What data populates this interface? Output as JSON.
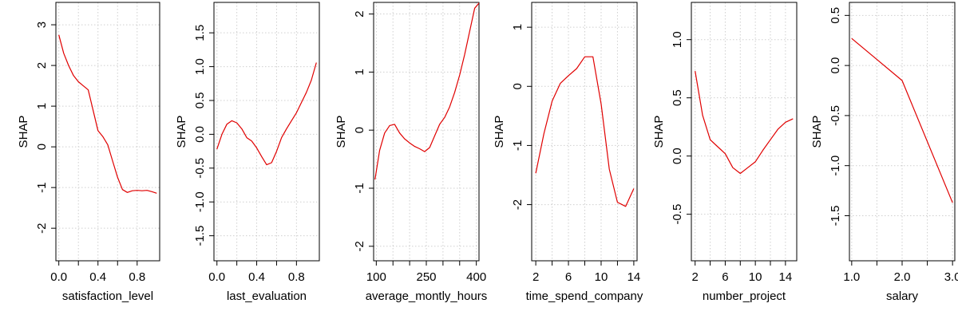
{
  "chart_data": [
    {
      "type": "line",
      "xlabel": "satisfaction_level",
      "ylabel": "SHAP",
      "xlim": [
        -0.03,
        1.03
      ],
      "ylim": [
        -2.8,
        3.55
      ],
      "xticks": [
        0.0,
        0.4,
        0.8
      ],
      "xtick_labels": [
        "0.0",
        "0.4",
        "0.8"
      ],
      "xtick_minor": [
        0.2,
        0.6
      ],
      "yticks": [
        -2,
        -1,
        0,
        1,
        2,
        3
      ],
      "ytick_labels": [
        "-2",
        "-1",
        "0",
        "1",
        "2",
        "3"
      ],
      "grid": true,
      "series": [
        {
          "color": "#e00000",
          "x": [
            0.0,
            0.05,
            0.1,
            0.15,
            0.2,
            0.25,
            0.3,
            0.35,
            0.4,
            0.45,
            0.5,
            0.55,
            0.6,
            0.65,
            0.7,
            0.75,
            0.8,
            0.85,
            0.9,
            0.95,
            1.0
          ],
          "y": [
            2.75,
            2.3,
            2.0,
            1.75,
            1.6,
            1.5,
            1.4,
            0.9,
            0.4,
            0.25,
            0.05,
            -0.35,
            -0.75,
            -1.05,
            -1.12,
            -1.08,
            -1.07,
            -1.08,
            -1.07,
            -1.1,
            -1.14
          ]
        }
      ]
    },
    {
      "type": "line",
      "xlabel": "last_evaluation",
      "ylabel": "SHAP",
      "xlim": [
        -0.03,
        1.03
      ],
      "ylim": [
        -1.87,
        1.95
      ],
      "xticks": [
        0.0,
        0.4,
        0.8
      ],
      "xtick_labels": [
        "0.0",
        "0.4",
        "0.8"
      ],
      "xtick_minor": [
        0.2,
        0.6
      ],
      "yticks": [
        -1.5,
        -1.0,
        -0.5,
        0.0,
        0.5,
        1.0,
        1.5
      ],
      "ytick_labels": [
        "-1.5",
        "-1.0",
        "-0.5",
        "0.0",
        "0.5",
        "1.0",
        "1.5"
      ],
      "grid": true,
      "series": [
        {
          "color": "#e00000",
          "x": [
            0.0,
            0.05,
            0.1,
            0.15,
            0.2,
            0.25,
            0.3,
            0.35,
            0.4,
            0.45,
            0.5,
            0.55,
            0.6,
            0.65,
            0.7,
            0.75,
            0.8,
            0.85,
            0.9,
            0.95,
            1.0
          ],
          "y": [
            -0.22,
            0.0,
            0.15,
            0.2,
            0.17,
            0.08,
            -0.05,
            -0.1,
            -0.2,
            -0.33,
            -0.45,
            -0.42,
            -0.25,
            -0.05,
            0.08,
            0.2,
            0.32,
            0.47,
            0.62,
            0.8,
            1.06
          ]
        }
      ]
    },
    {
      "type": "line",
      "xlabel": "average_montly_hours",
      "ylabel": "SHAP",
      "xlim": [
        92,
        408
      ],
      "ylim": [
        -2.25,
        2.2
      ],
      "xticks": [
        100,
        250,
        400
      ],
      "xtick_labels": [
        "100",
        "250",
        "400"
      ],
      "xtick_minor": [
        150,
        200,
        300,
        350
      ],
      "yticks": [
        -2,
        -1,
        0,
        1,
        2
      ],
      "ytick_labels": [
        "-2",
        "-1",
        "0",
        "1",
        "2"
      ],
      "grid": true,
      "series": [
        {
          "color": "#e00000",
          "x": [
            96,
            110,
            125,
            140,
            155,
            170,
            185,
            200,
            215,
            230,
            245,
            260,
            275,
            290,
            305,
            320,
            335,
            350,
            365,
            380,
            395,
            410
          ],
          "y": [
            -0.85,
            -0.35,
            -0.05,
            0.08,
            0.1,
            -0.05,
            -0.15,
            -0.22,
            -0.28,
            -0.32,
            -0.37,
            -0.3,
            -0.1,
            0.1,
            0.22,
            0.4,
            0.65,
            0.95,
            1.3,
            1.7,
            2.1,
            2.2
          ]
        }
      ]
    },
    {
      "type": "line",
      "xlabel": "time_spend_company",
      "ylabel": "SHAP",
      "xlim": [
        1.5,
        14.4
      ],
      "ylim": [
        -2.95,
        1.42
      ],
      "xticks": [
        2,
        6,
        10,
        14
      ],
      "xtick_labels": [
        "2",
        "6",
        "10",
        "14"
      ],
      "xtick_minor": [
        4,
        8,
        12
      ],
      "yticks": [
        -2,
        -1,
        0,
        1
      ],
      "ytick_labels": [
        "-2",
        "-1",
        "0",
        "1"
      ],
      "grid": true,
      "series": [
        {
          "color": "#e00000",
          "x": [
            2,
            3,
            4,
            5,
            6,
            7,
            8,
            9,
            10,
            11,
            12,
            13,
            14
          ],
          "y": [
            -1.47,
            -0.8,
            -0.25,
            0.05,
            0.18,
            0.3,
            0.5,
            0.5,
            -0.3,
            -1.4,
            -1.96,
            -2.03,
            -1.73
          ]
        }
      ]
    },
    {
      "type": "line",
      "xlabel": "number_project",
      "ylabel": "SHAP",
      "xlim": [
        1.5,
        15.5
      ],
      "ylim": [
        -0.9,
        1.32
      ],
      "xticks": [
        2,
        6,
        10,
        14
      ],
      "xtick_labels": [
        "2",
        "6",
        "10",
        "14"
      ],
      "xtick_minor": [
        4,
        8,
        12
      ],
      "yticks": [
        -0.5,
        0.0,
        0.5,
        1.0
      ],
      "ytick_labels": [
        "-0.5",
        "0.0",
        "0.5",
        "1.0"
      ],
      "grid": true,
      "series": [
        {
          "color": "#e00000",
          "x": [
            2,
            3,
            4,
            5,
            6,
            7,
            8,
            9,
            10,
            11,
            12,
            13,
            14,
            15
          ],
          "y": [
            0.73,
            0.35,
            0.14,
            0.08,
            0.02,
            -0.1,
            -0.15,
            -0.1,
            -0.05,
            0.05,
            0.14,
            0.23,
            0.29,
            0.32
          ]
        }
      ]
    },
    {
      "type": "line",
      "xlabel": "salary",
      "ylabel": "SHAP",
      "xlim": [
        0.955,
        3.045
      ],
      "ylim": [
        -1.95,
        0.63
      ],
      "xticks": [
        1.0,
        2.0,
        3.0
      ],
      "xtick_labels": [
        "1.0",
        "2.0",
        "3.0"
      ],
      "xtick_minor": [
        1.5,
        2.5
      ],
      "yticks": [
        -1.5,
        -1.0,
        -0.5,
        0.0,
        0.5
      ],
      "ytick_labels": [
        "-1.5",
        "-1.0",
        "-0.5",
        "0.0",
        "0.5"
      ],
      "grid": true,
      "series": [
        {
          "color": "#e00000",
          "x": [
            1.0,
            1.5,
            2.0,
            3.0
          ],
          "y": [
            0.27,
            0.06,
            -0.15,
            -1.37
          ]
        }
      ]
    }
  ]
}
